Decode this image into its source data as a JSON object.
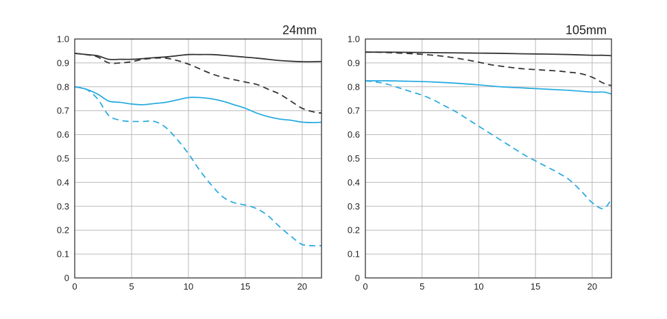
{
  "chart_data": [
    {
      "type": "line",
      "title": "24mm",
      "xlabel": "",
      "ylabel": "",
      "xlim": [
        0,
        21.7
      ],
      "ylim": [
        0,
        1.0
      ],
      "xticks": [
        0,
        5,
        10,
        15,
        20
      ],
      "xtick_labels": [
        "0",
        "5",
        "10",
        "15",
        "20"
      ],
      "yticks": [
        0,
        0.1,
        0.2,
        0.3,
        0.4,
        0.5,
        0.6,
        0.7,
        0.8,
        0.9,
        1.0
      ],
      "ytick_labels": [
        "0",
        "0.1",
        "0.2",
        "0.3",
        "0.4",
        "0.5",
        "0.6",
        "0.7",
        "0.8",
        "0.9",
        "1.0"
      ],
      "grid": true,
      "legend": "none",
      "series": [
        {
          "color": "#333333",
          "style": "solid",
          "x": [
            0,
            1,
            2,
            3,
            4,
            5,
            6,
            7,
            8,
            9,
            10,
            11,
            12,
            13,
            14,
            15,
            16,
            17,
            18,
            19,
            20,
            21,
            21.7
          ],
          "y": [
            0.94,
            0.935,
            0.93,
            0.915,
            0.915,
            0.915,
            0.918,
            0.922,
            0.925,
            0.93,
            0.935,
            0.935,
            0.935,
            0.932,
            0.928,
            0.924,
            0.92,
            0.915,
            0.91,
            0.907,
            0.905,
            0.905,
            0.906
          ]
        },
        {
          "color": "#333333",
          "style": "dashed",
          "x": [
            0,
            1,
            2,
            3,
            4,
            5,
            6,
            7,
            8,
            9,
            10,
            11,
            12,
            13,
            14,
            15,
            16,
            17,
            18,
            19,
            20,
            21,
            21.7
          ],
          "y": [
            0.94,
            0.935,
            0.925,
            0.9,
            0.9,
            0.905,
            0.915,
            0.92,
            0.92,
            0.91,
            0.895,
            0.875,
            0.855,
            0.84,
            0.83,
            0.82,
            0.81,
            0.79,
            0.77,
            0.74,
            0.71,
            0.695,
            0.69
          ]
        },
        {
          "color": "#29abe2",
          "style": "solid",
          "x": [
            0,
            1,
            2,
            3,
            4,
            5,
            6,
            7,
            8,
            9,
            10,
            11,
            12,
            13,
            14,
            15,
            16,
            17,
            18,
            19,
            20,
            21,
            21.7
          ],
          "y": [
            0.8,
            0.79,
            0.77,
            0.74,
            0.735,
            0.728,
            0.725,
            0.73,
            0.735,
            0.745,
            0.755,
            0.755,
            0.75,
            0.74,
            0.725,
            0.71,
            0.69,
            0.675,
            0.665,
            0.66,
            0.652,
            0.65,
            0.652
          ]
        },
        {
          "color": "#29abe2",
          "style": "dashed",
          "x": [
            0,
            1,
            2,
            3,
            4,
            5,
            6,
            7,
            8,
            9,
            10,
            11,
            12,
            13,
            14,
            15,
            16,
            17,
            18,
            19,
            20,
            21,
            21.7
          ],
          "y": [
            0.8,
            0.79,
            0.75,
            0.68,
            0.66,
            0.655,
            0.655,
            0.655,
            0.63,
            0.58,
            0.52,
            0.45,
            0.39,
            0.34,
            0.315,
            0.305,
            0.29,
            0.26,
            0.215,
            0.175,
            0.14,
            0.135,
            0.135
          ]
        }
      ]
    },
    {
      "type": "line",
      "title": "105mm",
      "xlabel": "",
      "ylabel": "",
      "xlim": [
        0,
        21.7
      ],
      "ylim": [
        0,
        1.0
      ],
      "xticks": [
        0,
        5,
        10,
        15,
        20
      ],
      "xtick_labels": [
        "0",
        "5",
        "10",
        "15",
        "20"
      ],
      "yticks": [
        0,
        0.1,
        0.2,
        0.3,
        0.4,
        0.5,
        0.6,
        0.7,
        0.8,
        0.9,
        1.0
      ],
      "ytick_labels": [
        "0",
        "0.1",
        "0.2",
        "0.3",
        "0.4",
        "0.5",
        "0.6",
        "0.7",
        "0.8",
        "0.9",
        "1.0"
      ],
      "grid": true,
      "legend": "none",
      "series": [
        {
          "color": "#333333",
          "style": "solid",
          "x": [
            0,
            2,
            4,
            6,
            8,
            10,
            12,
            14,
            16,
            18,
            20,
            21,
            21.7
          ],
          "y": [
            0.945,
            0.945,
            0.944,
            0.943,
            0.942,
            0.941,
            0.94,
            0.938,
            0.937,
            0.935,
            0.932,
            0.932,
            0.93
          ]
        },
        {
          "color": "#333333",
          "style": "dashed",
          "x": [
            0,
            1,
            2,
            3,
            4,
            5,
            6,
            7,
            8,
            9,
            10,
            11,
            12,
            13,
            14,
            15,
            16,
            17,
            18,
            19,
            20,
            21,
            21.7
          ],
          "y": [
            0.945,
            0.945,
            0.943,
            0.941,
            0.939,
            0.936,
            0.932,
            0.927,
            0.92,
            0.912,
            0.903,
            0.893,
            0.886,
            0.88,
            0.875,
            0.872,
            0.869,
            0.866,
            0.861,
            0.855,
            0.84,
            0.815,
            0.805
          ]
        },
        {
          "color": "#29abe2",
          "style": "solid",
          "x": [
            0,
            2,
            4,
            6,
            8,
            10,
            12,
            14,
            16,
            18,
            20,
            21,
            21.7
          ],
          "y": [
            0.825,
            0.825,
            0.823,
            0.82,
            0.815,
            0.808,
            0.8,
            0.795,
            0.79,
            0.785,
            0.778,
            0.778,
            0.77
          ]
        },
        {
          "color": "#29abe2",
          "style": "dashed",
          "x": [
            0,
            1,
            2,
            3,
            4,
            5,
            6,
            7,
            8,
            9,
            10,
            11,
            12,
            13,
            14,
            15,
            16,
            17,
            18,
            19,
            20,
            21,
            21.7
          ],
          "y": [
            0.825,
            0.82,
            0.81,
            0.795,
            0.78,
            0.765,
            0.745,
            0.72,
            0.695,
            0.665,
            0.635,
            0.605,
            0.575,
            0.545,
            0.515,
            0.49,
            0.465,
            0.44,
            0.41,
            0.365,
            0.315,
            0.29,
            0.33
          ]
        }
      ]
    }
  ]
}
